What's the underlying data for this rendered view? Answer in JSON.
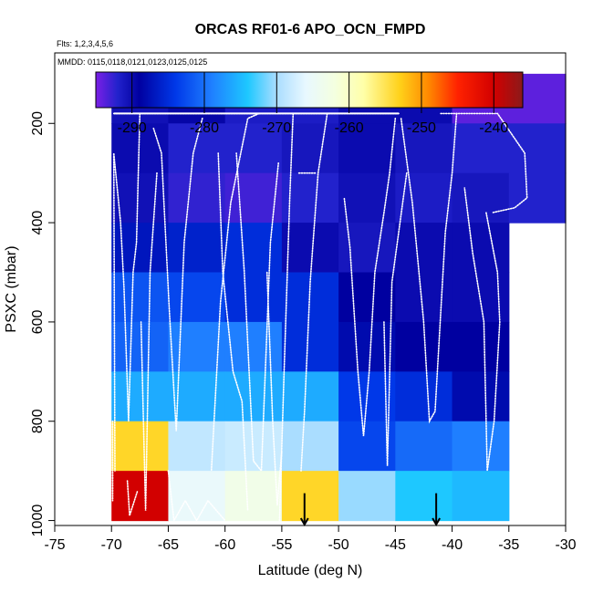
{
  "chart_data": {
    "type": "heatmap",
    "title": "ORCAS RF01-6 APO_OCN_FMPD",
    "subtitle_flights": "Flts: 1,2,3,4,5,6",
    "subtitle_dates": "MMDD: 0115,0118,0121,0123,0125,0125",
    "xlabel": "Latitude (deg N)",
    "ylabel": "PSXC (mbar)",
    "xlim": [
      -75,
      -30
    ],
    "ylim": [
      1010,
      58
    ],
    "y_reversed": true,
    "xticks": [
      -75,
      -70,
      -65,
      -60,
      -55,
      -50,
      -45,
      -40,
      -35,
      -30
    ],
    "yticks": [
      200,
      400,
      600,
      800,
      1000
    ],
    "colorbar": {
      "range": [
        -295,
        -236
      ],
      "ticks": [
        -290,
        -280,
        -270,
        -260,
        -250,
        -240
      ],
      "stops": [
        {
          "v": -295,
          "c": "#7b1fe6"
        },
        {
          "v": -292,
          "c": "#2222cc"
        },
        {
          "v": -289,
          "c": "#0000a0"
        },
        {
          "v": -284,
          "c": "#0038e8"
        },
        {
          "v": -279,
          "c": "#1f7fff"
        },
        {
          "v": -274,
          "c": "#1ec8ff"
        },
        {
          "v": -270,
          "c": "#aaddff"
        },
        {
          "v": -266,
          "c": "#e8f8ff"
        },
        {
          "v": -262,
          "c": "#f4ffe0"
        },
        {
          "v": -258,
          "c": "#ffffa8"
        },
        {
          "v": -253,
          "c": "#ffd11a"
        },
        {
          "v": -249,
          "c": "#ff8800"
        },
        {
          "v": -245,
          "c": "#ff2200"
        },
        {
          "v": -240,
          "c": "#d20000"
        },
        {
          "v": -236,
          "c": "#8b1a1a"
        }
      ]
    },
    "lat_bins": [
      -70,
      -65,
      -60,
      -55,
      -50,
      -45,
      -40,
      -35,
      -30
    ],
    "p_bins": [
      100,
      200,
      300,
      400,
      500,
      600,
      700,
      800,
      900,
      1000
    ],
    "cell_values": [
      [
        -290.5,
        -289.5,
        -291.5,
        -291.5,
        -290,
        -290,
        -294,
        -294
      ],
      [
        -290,
        -292,
        -292,
        -291,
        -290,
        -291,
        -292,
        -292
      ],
      [
        -290.5,
        -292.5,
        -293,
        -292,
        -290.5,
        -291.5,
        -291,
        -292
      ],
      [
        -287,
        -286,
        -285,
        -290,
        -291,
        -290,
        -290,
        null
      ],
      [
        -282,
        -283,
        -285,
        -285,
        -289,
        -290,
        -290,
        null
      ],
      [
        -281,
        -279,
        -279,
        -285,
        -288,
        -289,
        -289,
        null
      ],
      [
        -276,
        -276,
        -276,
        -276,
        -284,
        -285,
        -288,
        null
      ],
      [
        -253.5,
        -268.5,
        -268,
        -270,
        -283,
        -280.5,
        -279,
        null
      ],
      [
        -240,
        -265.5,
        -263,
        -253.5,
        -270.5,
        -274,
        -275,
        null
      ]
    ],
    "flight_track_style": "white dotted",
    "markers": [
      {
        "label": "arrow",
        "lat": -53,
        "direction": "down"
      },
      {
        "label": "arrow",
        "lat": -41.4,
        "direction": "down"
      }
    ]
  }
}
